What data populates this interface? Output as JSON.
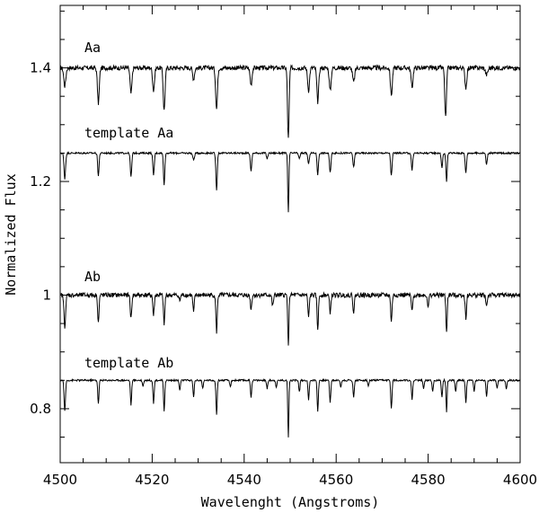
{
  "chart_data": {
    "type": "line",
    "title": "",
    "xlabel": "Wavelenght (Angstroms)",
    "ylabel": "Normalized Flux",
    "xlim": [
      4500,
      4600
    ],
    "ylim": [
      0.705,
      1.51
    ],
    "x_ticks": [
      4500,
      4520,
      4540,
      4560,
      4580,
      4600
    ],
    "y_ticks": [
      0.8,
      1,
      1.2,
      1.4
    ],
    "y_tick_labels": [
      "0.8",
      "1",
      "1.2",
      "1.4"
    ],
    "x_tick_labels": [
      "4500",
      "4520",
      "4540",
      "4560",
      "4580",
      "4600"
    ],
    "grid": false,
    "line_color": "#000000",
    "series": [
      {
        "name": "Aa",
        "continuum": 1.4,
        "noise": 0.004,
        "lines": [
          [
            4501.0,
            0.032,
            0.22
          ],
          [
            4508.3,
            0.062,
            0.2
          ],
          [
            4515.4,
            0.045,
            0.2
          ],
          [
            4520.3,
            0.04,
            0.2
          ],
          [
            4522.6,
            0.075,
            0.2
          ],
          [
            4529.0,
            0.02,
            0.2
          ],
          [
            4534.0,
            0.072,
            0.2
          ],
          [
            4541.5,
            0.03,
            0.2
          ],
          [
            4549.6,
            0.125,
            0.17
          ],
          [
            4554.0,
            0.04,
            0.2
          ],
          [
            4556.0,
            0.06,
            0.2
          ],
          [
            4558.7,
            0.04,
            0.2
          ],
          [
            4563.8,
            0.025,
            0.22
          ],
          [
            4572.0,
            0.048,
            0.2
          ],
          [
            4576.5,
            0.035,
            0.2
          ],
          [
            4583.8,
            0.088,
            0.18
          ],
          [
            4588.2,
            0.035,
            0.2
          ],
          [
            4592.7,
            0.012,
            0.25
          ]
        ]
      },
      {
        "name": "template Aa",
        "continuum": 1.25,
        "noise": 0.0015,
        "lines": [
          [
            4501.0,
            0.045,
            0.17
          ],
          [
            4508.3,
            0.04,
            0.15
          ],
          [
            4515.4,
            0.042,
            0.15
          ],
          [
            4520.3,
            0.04,
            0.15
          ],
          [
            4522.6,
            0.055,
            0.15
          ],
          [
            4529.0,
            0.012,
            0.18
          ],
          [
            4534.0,
            0.065,
            0.15
          ],
          [
            4541.5,
            0.032,
            0.15
          ],
          [
            4545.0,
            0.01,
            0.15
          ],
          [
            4549.6,
            0.105,
            0.12
          ],
          [
            4552.0,
            0.01,
            0.15
          ],
          [
            4554.0,
            0.02,
            0.15
          ],
          [
            4556.0,
            0.038,
            0.15
          ],
          [
            4558.7,
            0.035,
            0.15
          ],
          [
            4563.8,
            0.025,
            0.15
          ],
          [
            4572.0,
            0.04,
            0.15
          ],
          [
            4576.5,
            0.03,
            0.15
          ],
          [
            4583.0,
            0.025,
            0.15
          ],
          [
            4584.0,
            0.05,
            0.14
          ],
          [
            4588.2,
            0.035,
            0.15
          ],
          [
            4592.7,
            0.02,
            0.15
          ]
        ]
      },
      {
        "name": "Ab",
        "continuum": 1.0,
        "noise": 0.004,
        "lines": [
          [
            4501.0,
            0.055,
            0.18
          ],
          [
            4508.3,
            0.048,
            0.15
          ],
          [
            4515.4,
            0.042,
            0.15
          ],
          [
            4520.3,
            0.036,
            0.15
          ],
          [
            4522.6,
            0.052,
            0.15
          ],
          [
            4526.0,
            0.01,
            0.15
          ],
          [
            4529.0,
            0.03,
            0.15
          ],
          [
            4534.0,
            0.065,
            0.15
          ],
          [
            4541.5,
            0.025,
            0.15
          ],
          [
            4546.2,
            0.02,
            0.15
          ],
          [
            4549.6,
            0.092,
            0.12
          ],
          [
            4554.0,
            0.04,
            0.15
          ],
          [
            4556.0,
            0.06,
            0.15
          ],
          [
            4558.7,
            0.03,
            0.15
          ],
          [
            4563.8,
            0.03,
            0.15
          ],
          [
            4572.0,
            0.045,
            0.15
          ],
          [
            4576.5,
            0.03,
            0.15
          ],
          [
            4580.0,
            0.02,
            0.15
          ],
          [
            4584.0,
            0.066,
            0.14
          ],
          [
            4588.2,
            0.04,
            0.15
          ],
          [
            4592.7,
            0.02,
            0.15
          ]
        ]
      },
      {
        "name": "template Ab",
        "continuum": 0.85,
        "noise": 0.0015,
        "lines": [
          [
            4501.0,
            0.055,
            0.15
          ],
          [
            4508.3,
            0.042,
            0.13
          ],
          [
            4515.4,
            0.043,
            0.13
          ],
          [
            4518.0,
            0.01,
            0.13
          ],
          [
            4520.3,
            0.04,
            0.13
          ],
          [
            4522.6,
            0.055,
            0.13
          ],
          [
            4526.0,
            0.018,
            0.13
          ],
          [
            4529.0,
            0.03,
            0.13
          ],
          [
            4531.0,
            0.015,
            0.13
          ],
          [
            4534.0,
            0.062,
            0.13
          ],
          [
            4537.0,
            0.012,
            0.13
          ],
          [
            4541.5,
            0.03,
            0.13
          ],
          [
            4545.0,
            0.015,
            0.13
          ],
          [
            4547.0,
            0.012,
            0.13
          ],
          [
            4549.6,
            0.102,
            0.11
          ],
          [
            4552.0,
            0.02,
            0.13
          ],
          [
            4554.0,
            0.035,
            0.13
          ],
          [
            4556.0,
            0.055,
            0.13
          ],
          [
            4558.7,
            0.038,
            0.13
          ],
          [
            4561.0,
            0.012,
            0.13
          ],
          [
            4563.8,
            0.03,
            0.13
          ],
          [
            4567.0,
            0.01,
            0.13
          ],
          [
            4572.0,
            0.05,
            0.13
          ],
          [
            4576.5,
            0.035,
            0.13
          ],
          [
            4579.0,
            0.015,
            0.13
          ],
          [
            4581.0,
            0.02,
            0.13
          ],
          [
            4583.0,
            0.03,
            0.13
          ],
          [
            4584.0,
            0.055,
            0.12
          ],
          [
            4586.0,
            0.02,
            0.13
          ],
          [
            4588.2,
            0.04,
            0.13
          ],
          [
            4590.0,
            0.02,
            0.13
          ],
          [
            4592.7,
            0.03,
            0.13
          ],
          [
            4595.0,
            0.015,
            0.13
          ],
          [
            4597.0,
            0.015,
            0.13
          ]
        ]
      }
    ]
  },
  "labels": {
    "series_aa": "Aa",
    "series_template_aa": "template Aa",
    "series_ab": "Ab",
    "series_template_ab": "template Ab"
  }
}
